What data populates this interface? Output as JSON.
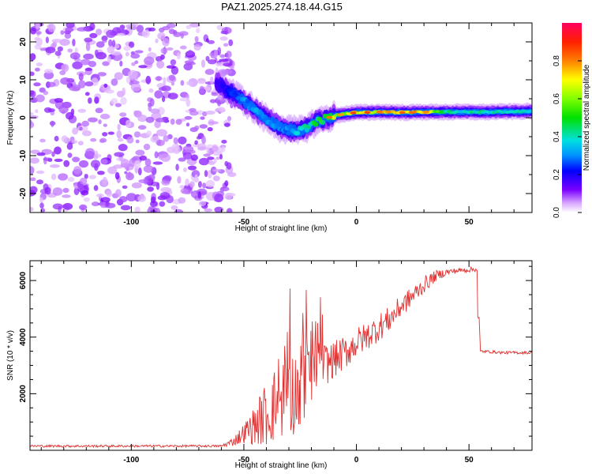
{
  "title": "PAZ1.2025.274.18.44.G15",
  "chart_data": [
    {
      "type": "heatmap",
      "name": "spectrogram",
      "xlabel": "Height of straight line (km)",
      "ylabel": "Frequency (Hz)",
      "xlim": [
        -145,
        78
      ],
      "ylim": [
        -25,
        25
      ],
      "xticks": [
        -100,
        -50,
        0,
        50
      ],
      "xtick_labels": [
        "-100",
        "-50",
        "0",
        "50"
      ],
      "yticks": [
        -20,
        -10,
        0,
        10,
        20
      ],
      "ytick_labels": [
        "-20",
        "-10",
        "0",
        "10",
        "20"
      ],
      "ridge": {
        "x": [
          -62,
          -58,
          -54,
          -50,
          -46,
          -42,
          -38,
          -34,
          -30,
          -26,
          -22,
          -18,
          -14,
          -10,
          -5,
          0,
          5,
          10,
          15,
          20,
          25,
          30,
          35,
          40,
          45,
          50,
          55,
          60,
          65,
          70,
          75,
          78
        ],
        "freq": [
          9,
          7.5,
          6,
          4.5,
          2.5,
          0.5,
          -1,
          -2.5,
          -3.2,
          -3.5,
          -2.5,
          -1.2,
          -0.3,
          0.5,
          1,
          1.4,
          1.4,
          1.5,
          1.5,
          1.4,
          1.4,
          1.5,
          1.5,
          1.5,
          1.5,
          1.5,
          1.5,
          1.5,
          1.6,
          1.6,
          1.7,
          1.7
        ],
        "amplitude": [
          0.15,
          0.2,
          0.25,
          0.3,
          0.3,
          0.3,
          0.3,
          0.3,
          0.3,
          0.35,
          0.4,
          0.45,
          0.5,
          0.6,
          0.65,
          0.7,
          0.7,
          0.7,
          0.72,
          0.72,
          0.72,
          0.72,
          0.6,
          0.45,
          0.4,
          0.4,
          0.4,
          0.4,
          0.4,
          0.4,
          0.4,
          0.4
        ]
      },
      "noise_region": {
        "x": [
          -145,
          -55
        ],
        "amplitude": [
          0.03,
          0.12
        ]
      }
    },
    {
      "type": "colorbar",
      "label": "Normalized spectral amplitude",
      "range": [
        0,
        1
      ],
      "ticks": [
        0.0,
        0.2,
        0.4,
        0.6,
        0.8
      ],
      "tick_labels": [
        "0.0",
        "0.2",
        "0.4",
        "0.6",
        "0.8"
      ]
    },
    {
      "type": "line",
      "name": "snr",
      "xlabel": "Height of straight line (km)",
      "ylabel": "SNR (10 * v/v)",
      "xlim": [
        -145,
        78
      ],
      "ylim": [
        0,
        6700
      ],
      "xticks": [
        -100,
        -50,
        0,
        50
      ],
      "xtick_labels": [
        "-100",
        "-50",
        "0",
        "50"
      ],
      "yticks": [
        2000,
        4000,
        6000
      ],
      "ytick_labels": [
        "2000",
        "4000",
        "6000"
      ],
      "color": "#e03030",
      "x": [
        -145,
        -100,
        -60,
        -55,
        -50,
        -45,
        -40,
        -35,
        -30,
        -25,
        -20,
        -18,
        -15,
        -10,
        -5,
        0,
        5,
        10,
        15,
        20,
        25,
        30,
        35,
        40,
        45,
        50,
        53,
        54,
        55,
        60,
        65,
        70,
        78
      ],
      "y": [
        150,
        150,
        150,
        300,
        600,
        900,
        1300,
        1700,
        2000,
        2200,
        2900,
        2900,
        3000,
        3200,
        3450,
        3800,
        4050,
        4350,
        4650,
        5100,
        5450,
        5850,
        6150,
        6300,
        6350,
        6380,
        6400,
        6400,
        3500,
        3480,
        3450,
        3450,
        3450
      ],
      "noise": [
        40,
        40,
        40,
        150,
        350,
        700,
        1200,
        1400,
        1500,
        1600,
        1400,
        1000,
        800,
        650,
        600,
        550,
        500,
        500,
        450,
        400,
        350,
        300,
        200,
        120,
        90,
        90,
        90,
        90,
        50,
        50,
        50,
        50,
        50
      ]
    }
  ]
}
